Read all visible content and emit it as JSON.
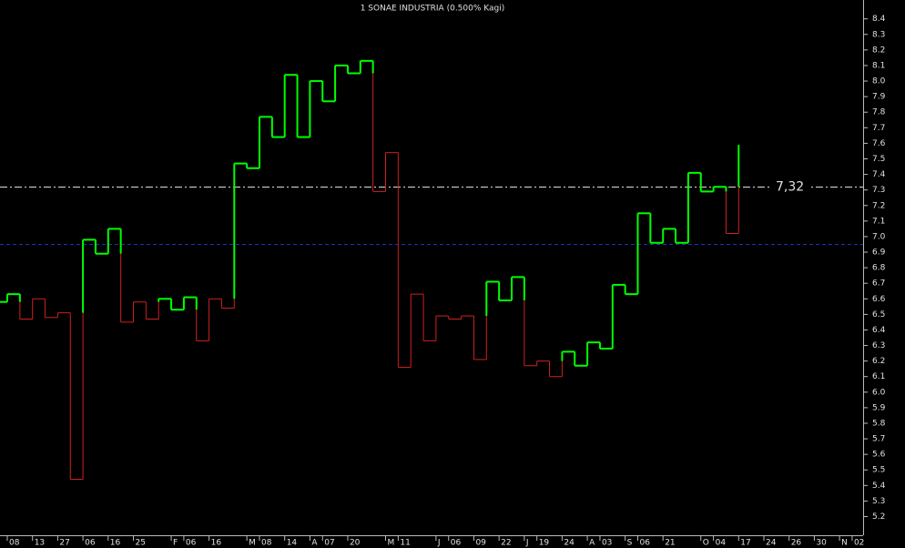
{
  "chart_data": {
    "type": "kagi",
    "title": "1 SONAE INDUSTRIA (0.500% Kagi)",
    "categories": [
      null,
      "08",
      null,
      "13",
      null,
      "27",
      null,
      "06",
      null,
      "16",
      null,
      "25",
      null,
      null,
      "F",
      "06",
      null,
      "16",
      null,
      null,
      "M",
      "08",
      null,
      "14",
      null,
      "A",
      "07",
      null,
      "20",
      null,
      null,
      "M",
      "11",
      null,
      null,
      "J",
      "06",
      null,
      "09",
      null,
      "22",
      null,
      "J",
      "19",
      null,
      "24",
      null,
      "A",
      "03",
      null,
      "S",
      "06",
      null,
      "21",
      null,
      null,
      "O",
      "04",
      null,
      "17",
      null,
      "24",
      null,
      "26",
      null,
      "30",
      null,
      "N",
      "02"
    ],
    "values": [
      6.58,
      6.63,
      6.47,
      6.6,
      6.48,
      6.51,
      5.44,
      6.98,
      6.89,
      7.05,
      6.45,
      6.58,
      6.47,
      6.6,
      6.53,
      6.61,
      6.33,
      6.6,
      6.54,
      7.47,
      7.44,
      7.77,
      7.64,
      8.04,
      7.64,
      8.0,
      7.87,
      8.1,
      8.05,
      8.13,
      7.29,
      7.54,
      6.16,
      6.63,
      6.33,
      6.49,
      6.47,
      6.49,
      6.21,
      6.71,
      6.59,
      6.74,
      6.17,
      6.2,
      6.1,
      6.26,
      6.17,
      6.32,
      6.28,
      6.69,
      6.63,
      7.15,
      6.96,
      7.05,
      6.96,
      7.41,
      7.29,
      7.32,
      7.02,
      7.59,
      null,
      null,
      null,
      null,
      null,
      null,
      null,
      null,
      null
    ],
    "colors": {
      "yang": "#00ff00",
      "yin": "#d02020"
    },
    "ylim": [
      5.08,
      8.5
    ],
    "yticks": [
      5.2,
      5.3,
      5.4,
      5.5,
      5.6,
      5.7,
      5.8,
      5.9,
      {
        "value": 6,
        "label": "6.0"
      },
      6.1,
      6.2,
      6.3,
      6.4,
      6.5,
      6.6,
      6.7,
      6.8,
      6.9,
      {
        "value": 7,
        "label": "7.0"
      },
      7.1,
      7.2,
      7.3,
      7.4,
      7.5,
      7.6,
      7.7,
      7.8,
      7.9,
      {
        "value": 8,
        "label": "8.0"
      },
      8.1,
      8.2,
      8.3,
      8.4
    ],
    "reference_lines": [
      {
        "value": 7.32,
        "label": "7,32",
        "color": "#dddddd"
      },
      {
        "value": 6.95,
        "color": "#2030c0"
      }
    ]
  }
}
